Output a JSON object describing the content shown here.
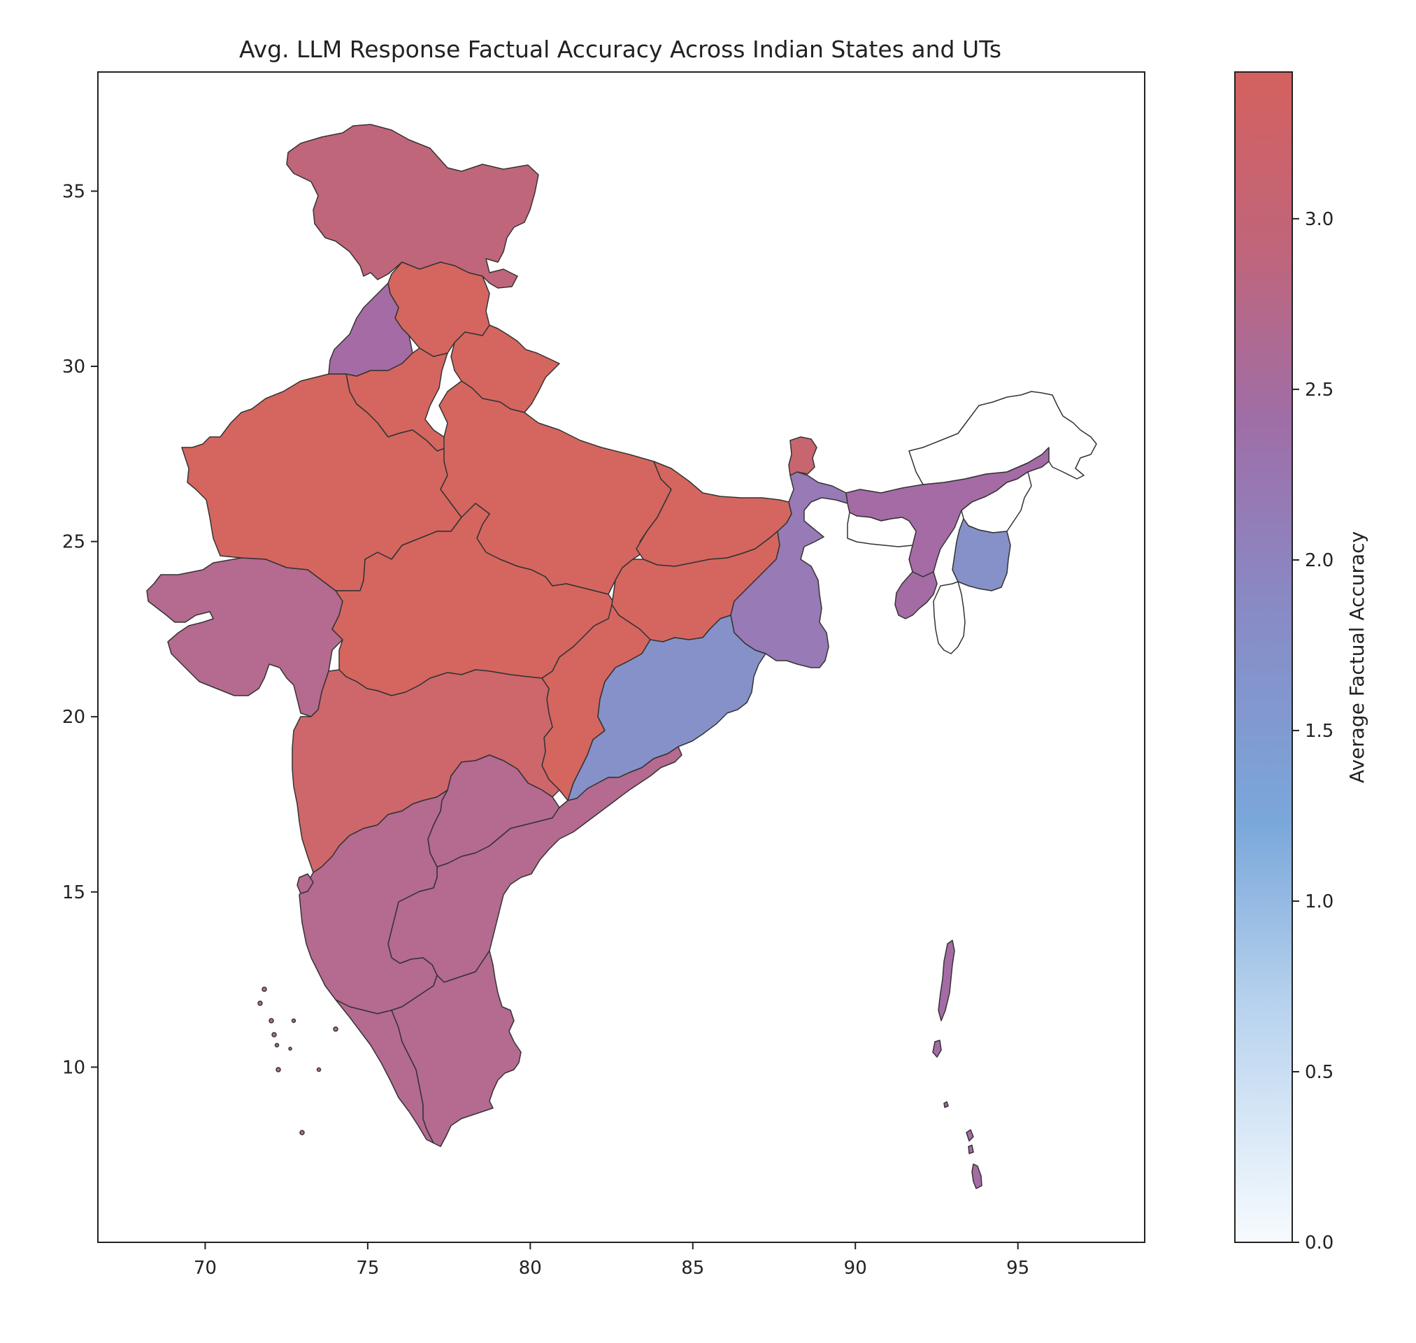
{
  "title": "Avg. LLM Response Factual Accuracy Across Indian States and UTs",
  "axes": {
    "x_ticks": [
      70,
      75,
      80,
      85,
      90,
      95
    ],
    "y_ticks": [
      10,
      15,
      20,
      25,
      30,
      35
    ],
    "xlim": [
      66.7,
      98.9
    ],
    "ylim": [
      5.0,
      38.4
    ]
  },
  "colorbar": {
    "label": "Average Factual Accuracy",
    "ticks": [
      "0.0",
      "0.5",
      "1.0",
      "1.5",
      "2.0",
      "2.5",
      "3.0"
    ],
    "range": [
      0.0,
      3.43
    ],
    "stops": [
      {
        "offset": 0.0,
        "color": "#f7fbff"
      },
      {
        "offset": 0.2,
        "color": "#b8d3ee"
      },
      {
        "offset": 0.36,
        "color": "#7aa7da"
      },
      {
        "offset": 0.55,
        "color": "#8989c4"
      },
      {
        "offset": 0.7,
        "color": "#9f6ea8"
      },
      {
        "offset": 0.85,
        "color": "#c0657a"
      },
      {
        "offset": 1.0,
        "color": "#d4615f"
      }
    ]
  },
  "chart_data": {
    "type": "choropleth",
    "title": "Avg. LLM Response Factual Accuracy Across Indian States and UTs",
    "value_label": "Average Factual Accuracy",
    "regions": [
      {
        "name": "Jammu and Kashmir / Ladakh",
        "value": 3.0,
        "color": "#c0667a"
      },
      {
        "name": "Himachal Pradesh",
        "value": 3.4,
        "color": "#d4665f"
      },
      {
        "name": "Punjab",
        "value": 2.3,
        "color": "#a56ba5"
      },
      {
        "name": "Uttarakhand",
        "value": 3.4,
        "color": "#d4665f"
      },
      {
        "name": "Haryana",
        "value": 3.4,
        "color": "#d4665f"
      },
      {
        "name": "Rajasthan",
        "value": 3.4,
        "color": "#d4665f"
      },
      {
        "name": "Uttar Pradesh",
        "value": 3.4,
        "color": "#d4665f"
      },
      {
        "name": "Bihar",
        "value": 3.4,
        "color": "#d4665f"
      },
      {
        "name": "Gujarat",
        "value": 2.8,
        "color": "#b56a90"
      },
      {
        "name": "Madhya Pradesh",
        "value": 3.4,
        "color": "#d4665f"
      },
      {
        "name": "Jharkhand",
        "value": 3.4,
        "color": "#d4665f"
      },
      {
        "name": "West Bengal",
        "value": 2.1,
        "color": "#977ab6"
      },
      {
        "name": "Chhattisgarh",
        "value": 3.4,
        "color": "#d4665f"
      },
      {
        "name": "Odisha",
        "value": 1.8,
        "color": "#8591c8"
      },
      {
        "name": "Maharashtra",
        "value": 3.3,
        "color": "#cd676b"
      },
      {
        "name": "Telangana",
        "value": 2.8,
        "color": "#b56a90"
      },
      {
        "name": "Andhra Pradesh",
        "value": 2.8,
        "color": "#b56a90"
      },
      {
        "name": "Karnataka",
        "value": 2.8,
        "color": "#b56a90"
      },
      {
        "name": "Goa",
        "value": 2.8,
        "color": "#b56a90"
      },
      {
        "name": "Kerala",
        "value": 2.8,
        "color": "#b56a90"
      },
      {
        "name": "Tamil Nadu",
        "value": 2.8,
        "color": "#b56a90"
      },
      {
        "name": "Sikkim",
        "value": 3.1,
        "color": "#c8666f"
      },
      {
        "name": "Assam",
        "value": 2.3,
        "color": "#a56ba5"
      },
      {
        "name": "Meghalaya",
        "value": null,
        "color": "#ffffff"
      },
      {
        "name": "Arunachal Pradesh",
        "value": null,
        "color": "#ffffff"
      },
      {
        "name": "Nagaland",
        "value": null,
        "color": "#ffffff"
      },
      {
        "name": "Manipur",
        "value": 1.8,
        "color": "#8591c8"
      },
      {
        "name": "Mizoram",
        "value": null,
        "color": "#ffffff"
      },
      {
        "name": "Tripura",
        "value": 2.3,
        "color": "#a56ba5"
      },
      {
        "name": "Lakshadweep",
        "value": 2.8,
        "color": "#b56a90"
      },
      {
        "name": "Andaman and Nicobar Islands",
        "value": 2.3,
        "color": "#a56ba5"
      }
    ]
  }
}
